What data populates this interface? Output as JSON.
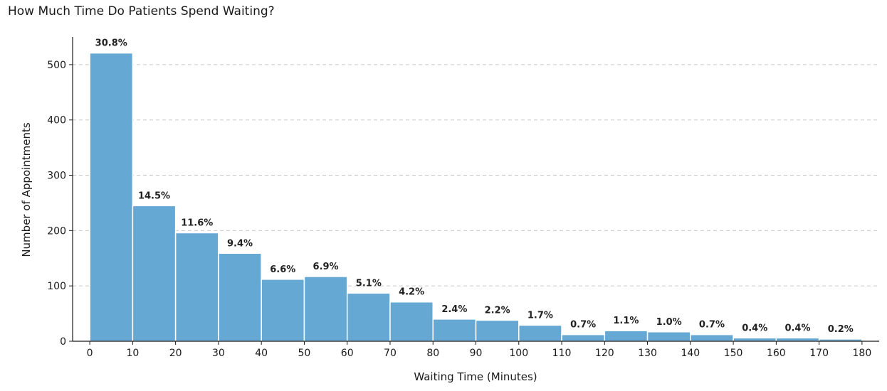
{
  "chart_data": {
    "type": "bar",
    "title": "How Much Time Do Patients Spend Waiting?",
    "xlabel": "Waiting Time (Minutes)",
    "ylabel": "Number of Appointments",
    "bin_edges": [
      0,
      10,
      20,
      30,
      40,
      50,
      60,
      70,
      80,
      90,
      100,
      110,
      120,
      130,
      140,
      150,
      160,
      170,
      180
    ],
    "values": [
      521,
      245,
      196,
      159,
      112,
      117,
      87,
      71,
      40,
      38,
      29,
      12,
      19,
      17,
      12,
      6,
      6,
      4
    ],
    "percent_labels": [
      "30.8%",
      "14.5%",
      "11.6%",
      "9.4%",
      "6.6%",
      "6.9%",
      "5.1%",
      "4.2%",
      "2.4%",
      "2.2%",
      "1.7%",
      "0.7%",
      "1.1%",
      "1.0%",
      "0.7%",
      "0.4%",
      "0.4%",
      "0.2%"
    ],
    "x_ticks": [
      0,
      10,
      20,
      30,
      40,
      50,
      60,
      70,
      80,
      90,
      100,
      110,
      120,
      130,
      140,
      150,
      160,
      170,
      180
    ],
    "y_ticks": [
      0,
      100,
      200,
      300,
      400,
      500
    ],
    "xlim": [
      -4,
      184
    ],
    "ylim": [
      0,
      550
    ],
    "grid": "y-dashed",
    "colors": {
      "bar": "#66a8d4",
      "bar_edge": "#ffffff",
      "grid": "#c8c8c8",
      "axis": "#1a1a1a"
    }
  }
}
